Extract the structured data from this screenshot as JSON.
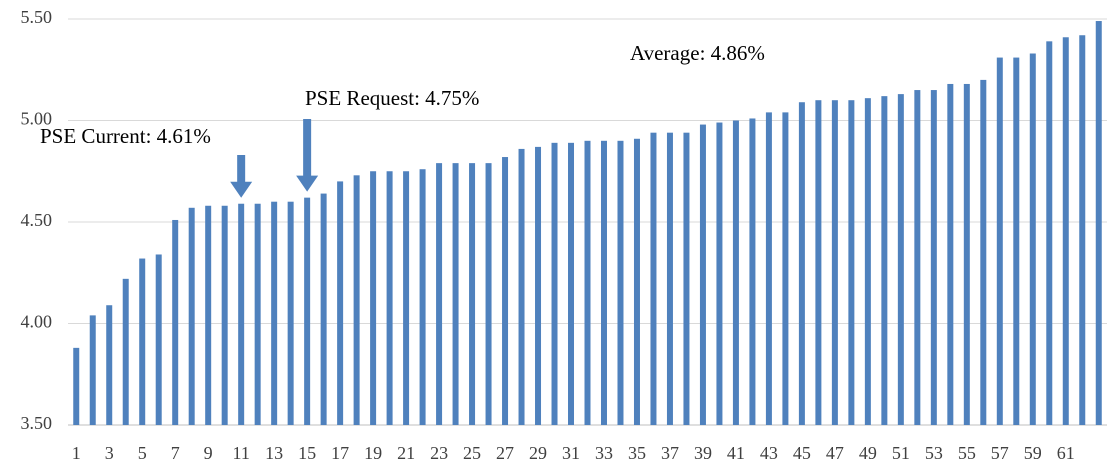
{
  "chart_data": {
    "type": "bar",
    "categories": [
      1,
      null,
      3,
      null,
      5,
      null,
      7,
      null,
      9,
      null,
      11,
      null,
      13,
      null,
      15,
      null,
      17,
      null,
      19,
      null,
      21,
      null,
      23,
      null,
      25,
      null,
      27,
      null,
      29,
      null,
      31,
      null,
      33,
      null,
      35,
      null,
      37,
      null,
      39,
      null,
      41,
      null,
      43,
      null,
      45,
      null,
      47,
      null,
      49,
      null,
      51,
      null,
      53,
      null,
      55,
      null,
      57,
      null,
      59,
      null,
      61,
      null,
      null
    ],
    "values": [
      3.88,
      4.04,
      4.09,
      4.22,
      4.32,
      4.34,
      4.51,
      4.57,
      4.58,
      4.58,
      4.59,
      4.59,
      4.6,
      4.6,
      4.62,
      4.64,
      4.7,
      4.73,
      4.75,
      4.75,
      4.75,
      4.76,
      4.79,
      4.79,
      4.79,
      4.79,
      4.82,
      4.86,
      4.87,
      4.89,
      4.89,
      4.9,
      4.9,
      4.9,
      4.91,
      4.94,
      4.94,
      4.94,
      4.98,
      4.99,
      5.0,
      5.01,
      5.04,
      5.04,
      5.09,
      5.1,
      5.1,
      5.1,
      5.11,
      5.12,
      5.13,
      5.15,
      5.15,
      5.18,
      5.18,
      5.2,
      5.31,
      5.31,
      5.33,
      5.39,
      5.41,
      5.42,
      5.49
    ],
    "color": "#4f81bd",
    "ylim": [
      3.5,
      5.5
    ],
    "yticks": [
      {
        "value": 3.5,
        "label": "3.50"
      },
      {
        "value": 4,
        "label": "4.00"
      },
      {
        "value": 4.5,
        "label": "4.50"
      },
      {
        "value": 5,
        "label": "5.00"
      },
      {
        "value": 5.5,
        "label": "5.50"
      }
    ],
    "grid": true,
    "annotations": [
      {
        "text": "PSE Current: 4.61%",
        "x": 11
      },
      {
        "text": "PSE Request: 4.75%",
        "x": 15
      },
      {
        "text": "Average: 4.86%",
        "x": 36
      }
    ]
  }
}
